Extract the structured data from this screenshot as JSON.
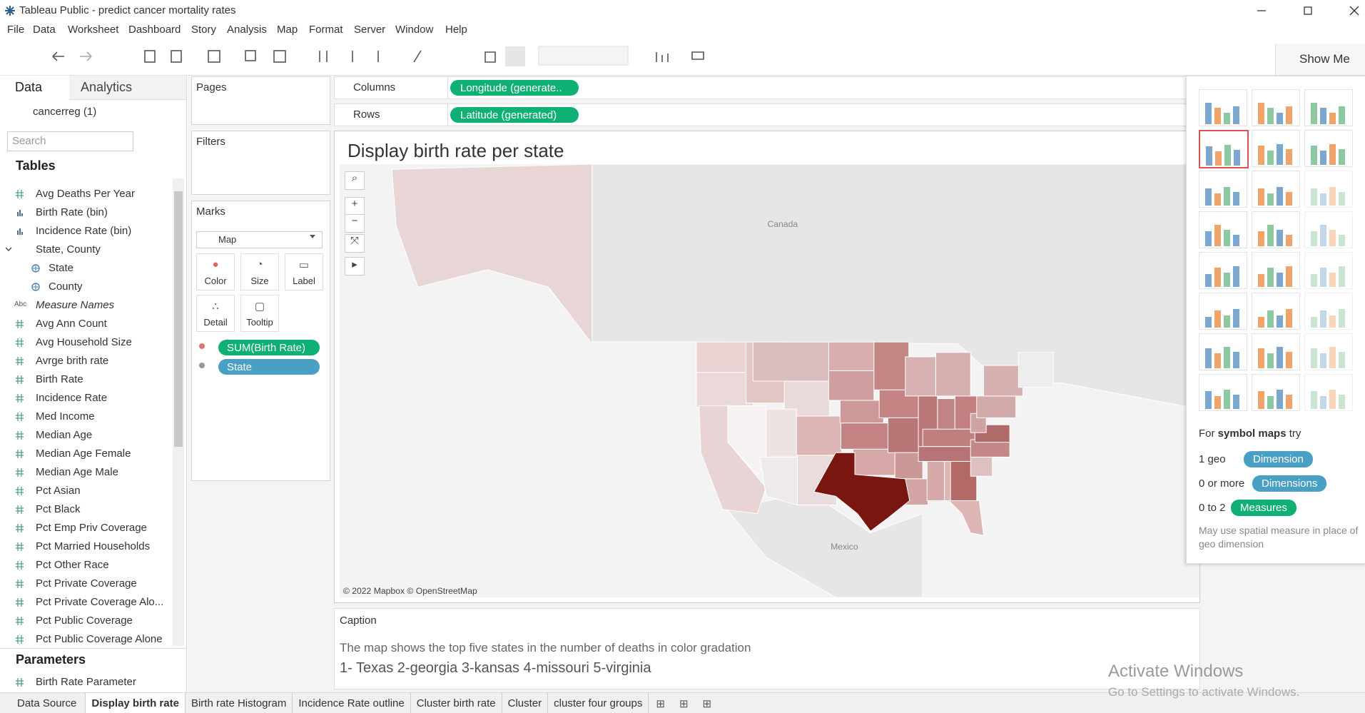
{
  "app": {
    "title": "Tableau Public - predict cancer mortality rates",
    "menu": [
      "File",
      "Data",
      "Worksheet",
      "Dashboard",
      "Story",
      "Analysis",
      "Map",
      "Format",
      "Server",
      "Window",
      "Help"
    ],
    "show_me": "Show Me"
  },
  "data_pane": {
    "tabs": [
      "Data",
      "Analytics"
    ],
    "source": "cancerreg (1)",
    "search_placeholder": "Search",
    "tables_heading": "Tables",
    "fields": [
      {
        "name": "Avg Deaths Per Year",
        "kind": "measure"
      },
      {
        "name": "Birth Rate (bin)",
        "kind": "bin"
      },
      {
        "name": "Incidence Rate (bin)",
        "kind": "bin"
      },
      {
        "name": "State, County",
        "kind": "hierarchy"
      },
      {
        "name": "State",
        "kind": "geo"
      },
      {
        "name": "County",
        "kind": "geo"
      },
      {
        "name": "Measure Names",
        "kind": "string",
        "type_label": "Abc"
      },
      {
        "name": "Avg Ann Count",
        "kind": "measure"
      },
      {
        "name": "Avg Household Size",
        "kind": "measure"
      },
      {
        "name": "Avrge brith rate",
        "kind": "measure"
      },
      {
        "name": "Birth Rate",
        "kind": "measure"
      },
      {
        "name": "Incidence Rate",
        "kind": "measure"
      },
      {
        "name": "Med Income",
        "kind": "measure"
      },
      {
        "name": "Median Age",
        "kind": "measure"
      },
      {
        "name": "Median Age Female",
        "kind": "measure"
      },
      {
        "name": "Median Age Male",
        "kind": "measure"
      },
      {
        "name": "Pct Asian",
        "kind": "measure"
      },
      {
        "name": "Pct Black",
        "kind": "measure"
      },
      {
        "name": "Pct Emp Priv Coverage",
        "kind": "measure"
      },
      {
        "name": "Pct Married Households",
        "kind": "measure"
      },
      {
        "name": "Pct Other Race",
        "kind": "measure"
      },
      {
        "name": "Pct Private Coverage",
        "kind": "measure"
      },
      {
        "name": "Pct Private Coverage Alo...",
        "kind": "measure"
      },
      {
        "name": "Pct Public Coverage",
        "kind": "measure"
      },
      {
        "name": "Pct Public Coverage Alone",
        "kind": "measure"
      }
    ],
    "parameters_heading": "Parameters",
    "parameters": [
      "Birth Rate Parameter"
    ]
  },
  "shelves": {
    "pages": "Pages",
    "filters": "Filters",
    "marks": "Marks",
    "mark_type": "Map",
    "mark_buttons": [
      "Color",
      "Size",
      "Label",
      "Detail",
      "Tooltip"
    ],
    "mark_pills": [
      {
        "name": "SUM(Birth Rate)",
        "role": "color"
      },
      {
        "name": "State",
        "role": "detail"
      }
    ],
    "columns": {
      "label": "Columns",
      "pill": "Longitude (generate.."
    },
    "rows": {
      "label": "Rows",
      "pill": "Latitude (generated)"
    }
  },
  "view": {
    "title": "Display birth rate per state",
    "labels": [
      "Canada",
      "Mexico"
    ],
    "attribution": "© 2022 Mapbox © OpenStreetMap"
  },
  "caption": {
    "heading": "Caption",
    "lines": [
      "The map shows the top five states in the number of deaths in color gradation",
      "1- Texas  2-georgia 3-kansas 4-missouri 5-virginia"
    ]
  },
  "show_me_panel": {
    "hint": {
      "prefix": "For",
      "bold": "symbol maps",
      "suffix": "try"
    },
    "requirements": [
      {
        "label": "1 geo",
        "pill": "Dimension",
        "kind": "dimension"
      },
      {
        "label": "0 or more",
        "pill": "Dimensions",
        "kind": "dimension"
      },
      {
        "label": "0 to 2",
        "pill": "Measures",
        "kind": "measure"
      }
    ],
    "note": "May use spatial measure in place of geo dimension"
  },
  "sheet_tabs": {
    "data_source": "Data Source",
    "tabs": [
      "Display birth rate",
      "Birth rate Histogram",
      "Incidence Rate outline",
      "Cluster birth rate",
      "Cluster",
      "cluster four groups"
    ],
    "active": 0
  },
  "watermark": {
    "title": "Activate Windows",
    "subtitle": "Go to Settings to activate Windows."
  }
}
